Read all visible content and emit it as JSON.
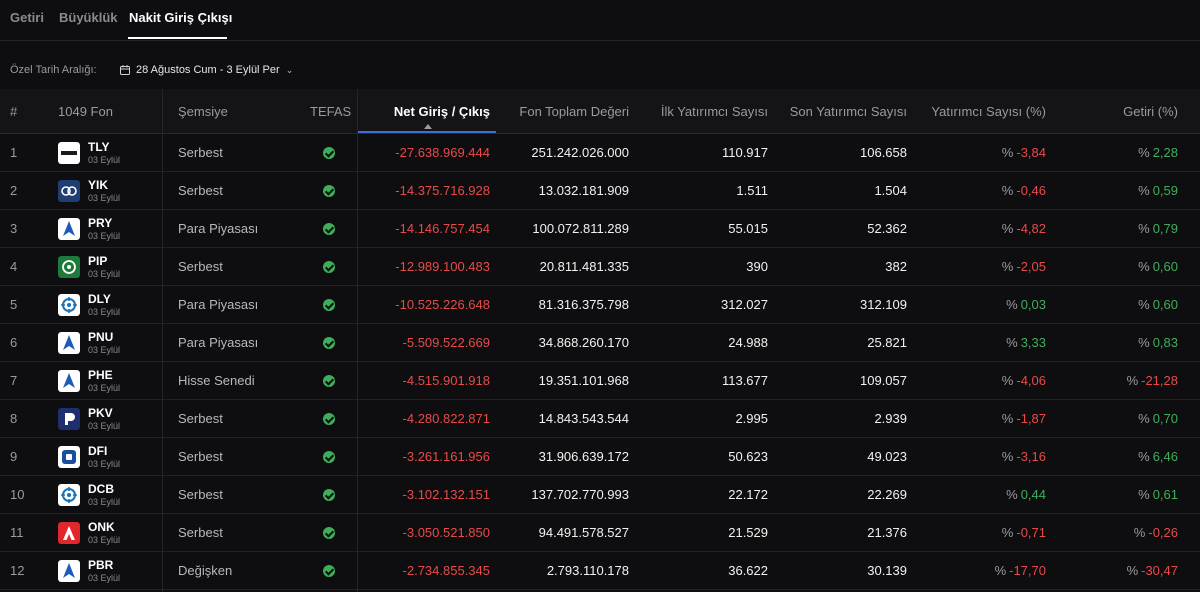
{
  "tabs": [
    {
      "label": "Getiri",
      "active": false
    },
    {
      "label": "Büyüklük",
      "active": false
    },
    {
      "label": "Nakit Giriş Çıkışı",
      "active": true
    }
  ],
  "filters": {
    "date_range_label": "Özel Tarih Aralığı:",
    "date_range_value": "28 Ağustos Cum - 3 Eylül Per"
  },
  "table": {
    "headers": {
      "index": "#",
      "fund": "1049 Fon",
      "umbrella": "Şemsiye",
      "tefas": "TEFAS",
      "net_flow": "Net Giriş / Çıkış",
      "total_value": "Fon Toplam Değeri",
      "first_investors": "İlk Yatırımcı Sayısı",
      "last_investors": "Son Yatırımcı Sayısı",
      "investor_change": "Yatırımcı Sayısı (%)",
      "return": "Getiri (%)"
    },
    "pct_symbol": "%",
    "rows": [
      {
        "idx": "1",
        "code": "TLY",
        "date": "03 Eylül",
        "logo": "tly",
        "category": "Serbest",
        "net": "-27.638.969.444",
        "total": "251.242.026.000",
        "first": "110.917",
        "last": "106.658",
        "inv": "-3,84",
        "inv_sign": "neg",
        "ret": "2,28",
        "ret_sign": "pos"
      },
      {
        "idx": "2",
        "code": "YIK",
        "date": "03 Eylül",
        "logo": "yik",
        "category": "Serbest",
        "net": "-14.375.716.928",
        "total": "13.032.181.909",
        "first": "1.511",
        "last": "1.504",
        "inv": "-0,46",
        "inv_sign": "neg",
        "ret": "0,59",
        "ret_sign": "pos"
      },
      {
        "idx": "3",
        "code": "PRY",
        "date": "03 Eylül",
        "logo": "arrow",
        "category": "Para Piyasası",
        "net": "-14.146.757.454",
        "total": "100.072.811.289",
        "first": "55.015",
        "last": "52.362",
        "inv": "-4,82",
        "inv_sign": "neg",
        "ret": "0,79",
        "ret_sign": "pos"
      },
      {
        "idx": "4",
        "code": "PIP",
        "date": "03 Eylül",
        "logo": "pip",
        "category": "Serbest",
        "net": "-12.989.100.483",
        "total": "20.811.481.335",
        "first": "390",
        "last": "382",
        "inv": "-2,05",
        "inv_sign": "neg",
        "ret": "0,60",
        "ret_sign": "pos"
      },
      {
        "idx": "5",
        "code": "DLY",
        "date": "03 Eylül",
        "logo": "wheel",
        "category": "Para Piyasası",
        "net": "-10.525.226.648",
        "total": "81.316.375.798",
        "first": "312.027",
        "last": "312.109",
        "inv": "0,03",
        "inv_sign": "pos",
        "ret": "0,60",
        "ret_sign": "pos"
      },
      {
        "idx": "6",
        "code": "PNU",
        "date": "03 Eylül",
        "logo": "arrow",
        "category": "Para Piyasası",
        "net": "-5.509.522.669",
        "total": "34.868.260.170",
        "first": "24.988",
        "last": "25.821",
        "inv": "3,33",
        "inv_sign": "pos",
        "ret": "0,83",
        "ret_sign": "pos"
      },
      {
        "idx": "7",
        "code": "PHE",
        "date": "03 Eylül",
        "logo": "arrow",
        "category": "Hisse Senedi",
        "net": "-4.515.901.918",
        "total": "19.351.101.968",
        "first": "113.677",
        "last": "109.057",
        "inv": "-4,06",
        "inv_sign": "neg",
        "ret": "-21,28",
        "ret_sign": "neg"
      },
      {
        "idx": "8",
        "code": "PKV",
        "date": "03 Eylül",
        "logo": "pkv",
        "category": "Serbest",
        "net": "-4.280.822.871",
        "total": "14.843.543.544",
        "first": "2.995",
        "last": "2.939",
        "inv": "-1,87",
        "inv_sign": "neg",
        "ret": "0,70",
        "ret_sign": "pos"
      },
      {
        "idx": "9",
        "code": "DFI",
        "date": "03 Eylül",
        "logo": "dfi",
        "category": "Serbest",
        "net": "-3.261.161.956",
        "total": "31.906.639.172",
        "first": "50.623",
        "last": "49.023",
        "inv": "-3,16",
        "inv_sign": "neg",
        "ret": "6,46",
        "ret_sign": "pos"
      },
      {
        "idx": "10",
        "code": "DCB",
        "date": "03 Eylül",
        "logo": "wheel",
        "category": "Serbest",
        "net": "-3.102.132.151",
        "total": "137.702.770.993",
        "first": "22.172",
        "last": "22.269",
        "inv": "0,44",
        "inv_sign": "pos",
        "ret": "0,61",
        "ret_sign": "pos"
      },
      {
        "idx": "11",
        "code": "ONK",
        "date": "03 Eylül",
        "logo": "onk",
        "category": "Serbest",
        "net": "-3.050.521.850",
        "total": "94.491.578.527",
        "first": "21.529",
        "last": "21.376",
        "inv": "-0,71",
        "inv_sign": "neg",
        "ret": "-0,26",
        "ret_sign": "neg"
      },
      {
        "idx": "12",
        "code": "PBR",
        "date": "03 Eylül",
        "logo": "arrow",
        "category": "Değişken",
        "net": "-2.734.855.345",
        "total": "2.793.110.178",
        "first": "36.622",
        "last": "30.139",
        "inv": "-17,70",
        "inv_sign": "neg",
        "ret": "-30,47",
        "ret_sign": "neg"
      }
    ]
  }
}
